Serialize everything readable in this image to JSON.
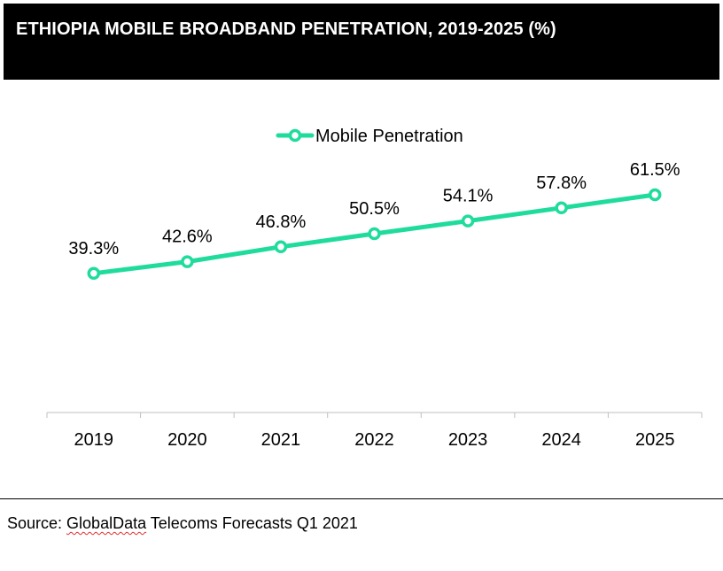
{
  "title": "ETHIOPIA MOBILE BROADBAND PENETRATION, 2019-2025 (%)",
  "source": {
    "prefix": "Source: ",
    "publisher": "GlobalData",
    "rest": " Telecoms Forecasts Q1 2021"
  },
  "colors": {
    "series": "#1fdc9c",
    "title_bg": "#000000",
    "title_text": "#ffffff",
    "axis": "#bfbfbf"
  },
  "chart_data": {
    "type": "line",
    "title": "ETHIOPIA MOBILE BROADBAND PENETRATION, 2019-2025 (%)",
    "categories": [
      "2019",
      "2020",
      "2021",
      "2022",
      "2023",
      "2024",
      "2025"
    ],
    "series": [
      {
        "name": "Mobile Penetration",
        "values": [
          39.3,
          42.6,
          46.8,
          50.5,
          54.1,
          57.8,
          61.5
        ],
        "labels": [
          "39.3%",
          "42.6%",
          "46.8%",
          "50.5%",
          "54.1%",
          "57.8%",
          "61.5%"
        ]
      }
    ],
    "xlabel": "",
    "ylabel": "",
    "ylim": [
      0,
      80
    ],
    "grid": false,
    "legend": "top-center",
    "markers": "hollow-circle"
  }
}
